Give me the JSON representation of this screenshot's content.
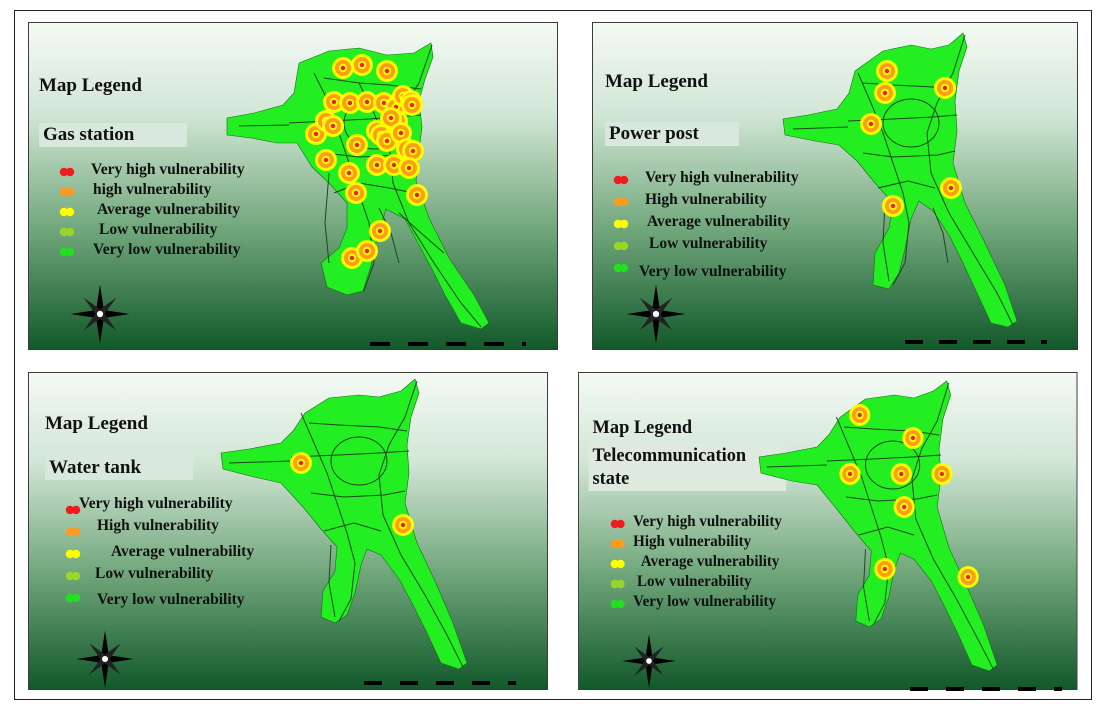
{
  "colors": {
    "very_high": "#ee1c1c",
    "high": "#ff9a1a",
    "average": "#ffff00",
    "low": "#9ad62a",
    "very_low": "#20e020",
    "region": "#22ee22",
    "roads": "#1a4a1a"
  },
  "compass_icon": "north-arrow-compass-rose-icon",
  "maps": [
    {
      "title": "Map Legend",
      "layer_label": "Gas station",
      "legend": [
        {
          "level": "very_high",
          "label": "Very high vulnerability"
        },
        {
          "level": "high",
          "label": "high vulnerability"
        },
        {
          "level": "average",
          "label": "Average vulnerability"
        },
        {
          "level": "low",
          "label": "Low vulnerability"
        },
        {
          "level": "very_low",
          "label": "Very low vulnerability"
        }
      ]
    },
    {
      "title": "Map Legend",
      "layer_label": "Power post",
      "legend": [
        {
          "level": "very_high",
          "label": "Very high vulnerability"
        },
        {
          "level": "high",
          "label": "High vulnerability"
        },
        {
          "level": "average",
          "label": "Average vulnerability"
        },
        {
          "level": "low",
          "label": "Low vulnerability"
        },
        {
          "level": "very_low",
          "label": "Very low vulnerability"
        }
      ]
    },
    {
      "title": "Map Legend",
      "layer_label": "Water tank",
      "legend": [
        {
          "level": "very_high",
          "label": "Very high vulnerability"
        },
        {
          "level": "high",
          "label": "High vulnerability"
        },
        {
          "level": "average",
          "label": "Average vulnerability"
        },
        {
          "level": "low",
          "label": "Low vulnerability"
        },
        {
          "level": "very_low",
          "label": "Very low vulnerability"
        }
      ]
    },
    {
      "title": "Map Legend",
      "layer_label": "Telecommunication state",
      "legend": [
        {
          "level": "very_high",
          "label": "Very high vulnerability"
        },
        {
          "level": "high",
          "label": "High vulnerability"
        },
        {
          "level": "average",
          "label": "Average vulnerability"
        },
        {
          "level": "low",
          "label": "Low vulnerability"
        },
        {
          "level": "very_low",
          "label": "Very low vulnerability"
        }
      ]
    }
  ]
}
